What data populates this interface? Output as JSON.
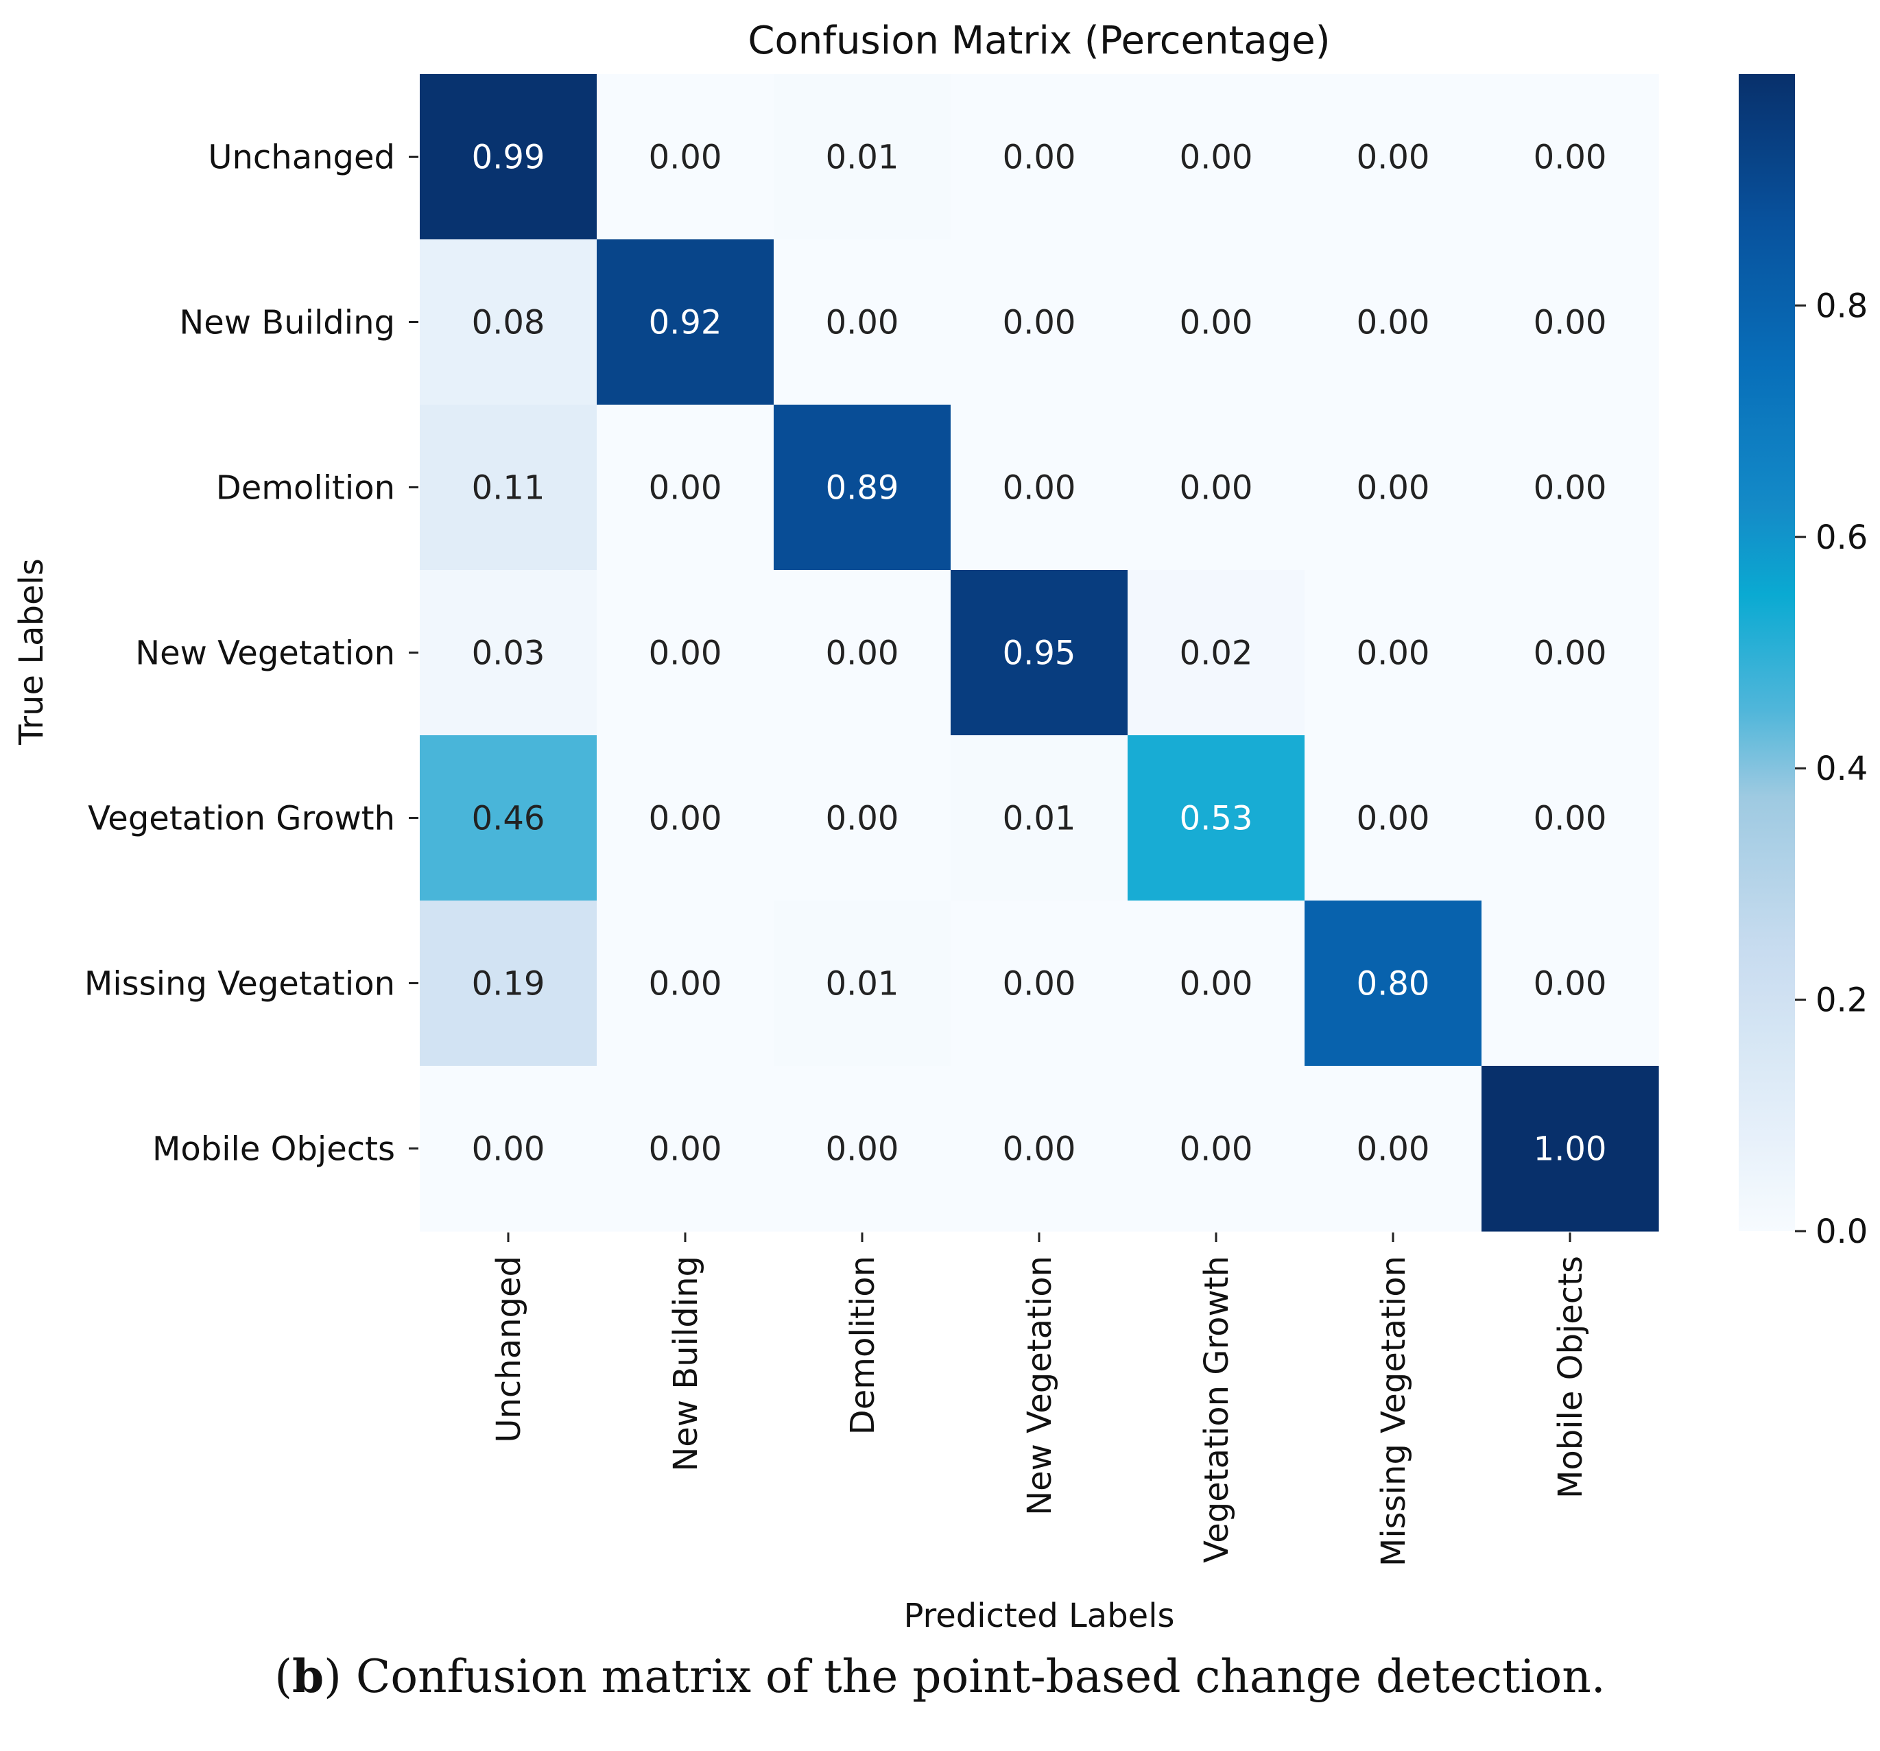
{
  "chart_data": {
    "type": "heatmap",
    "title": "Confusion Matrix (Percentage)",
    "xlabel": "Predicted Labels",
    "ylabel": "True Labels",
    "x_categories": [
      "Unchanged",
      "New Building",
      "Demolition",
      "New Vegetation",
      "Vegetation Growth",
      "Missing Vegetation",
      "Mobile Objects"
    ],
    "y_categories": [
      "Unchanged",
      "New Building",
      "Demolition",
      "New Vegetation",
      "Vegetation Growth",
      "Missing Vegetation",
      "Mobile Objects"
    ],
    "values": [
      [
        0.99,
        0.0,
        0.01,
        0.0,
        0.0,
        0.0,
        0.0
      ],
      [
        0.08,
        0.92,
        0.0,
        0.0,
        0.0,
        0.0,
        0.0
      ],
      [
        0.11,
        0.0,
        0.89,
        0.0,
        0.0,
        0.0,
        0.0
      ],
      [
        0.03,
        0.0,
        0.0,
        0.95,
        0.02,
        0.0,
        0.0
      ],
      [
        0.46,
        0.0,
        0.0,
        0.01,
        0.53,
        0.0,
        0.0
      ],
      [
        0.19,
        0.0,
        0.01,
        0.0,
        0.0,
        0.8,
        0.0
      ],
      [
        0.0,
        0.0,
        0.0,
        0.0,
        0.0,
        0.0,
        1.0
      ]
    ],
    "colormap": "Blues",
    "colorbar": {
      "range": [
        0.0,
        1.0
      ],
      "ticks": [
        0.0,
        0.2,
        0.4,
        0.6,
        0.8
      ],
      "tick_labels": [
        "0.0",
        "0.2",
        "0.4",
        "0.6",
        "0.8"
      ]
    }
  },
  "caption": {
    "label": "b",
    "text": " Confusion matrix of the point-based change detection."
  }
}
